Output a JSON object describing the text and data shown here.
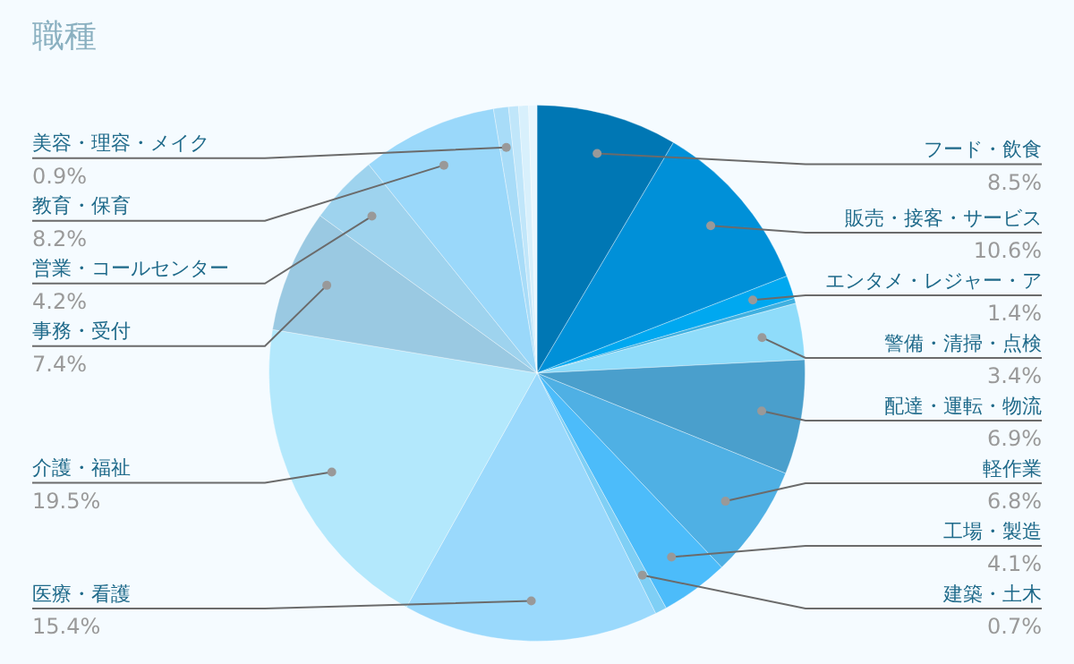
{
  "chart_data": {
    "type": "pie",
    "title": "職種",
    "categories": [
      "フード・飲食",
      "販売・接客・サービス",
      "エンタメ・レジャー・ア",
      null,
      "警備・清掃・点検",
      "配達・運転・物流",
      "軽作業",
      "工場・製造",
      "建築・土木",
      "医療・看護",
      "介護・福祉",
      "事務・受付",
      "営業・コールセンター",
      "教育・保育",
      "美容・理容・メイク",
      null,
      null,
      null
    ],
    "values": [
      8.5,
      10.6,
      1.4,
      0.3,
      3.4,
      6.9,
      6.8,
      4.1,
      0.7,
      15.4,
      19.5,
      7.4,
      4.2,
      8.2,
      0.9,
      0.6,
      0.6,
      0.5
    ],
    "value_labels": [
      "8.5%",
      "10.6%",
      "1.4%",
      null,
      "3.4%",
      "6.9%",
      "6.8%",
      "4.1%",
      "0.7%",
      "15.4%",
      "19.5%",
      "7.4%",
      "4.2%",
      "8.2%",
      "0.9%",
      null,
      null,
      null
    ],
    "colors": [
      "#0077b4",
      "#0090d8",
      "#00a8f0",
      "#40b0e0",
      "#8fdcfa",
      "#4a9fcc",
      "#4fb0e4",
      "#4cbcfa",
      "#7fcff5",
      "#9ad9fc",
      "#b3e8fc",
      "#9ac9e2",
      "#9ed3ee",
      "#9ad8fa",
      "#a8dcf8",
      "#c0e6fa",
      "#d8f0fc",
      "#e8f6fe"
    ],
    "legend": false
  }
}
